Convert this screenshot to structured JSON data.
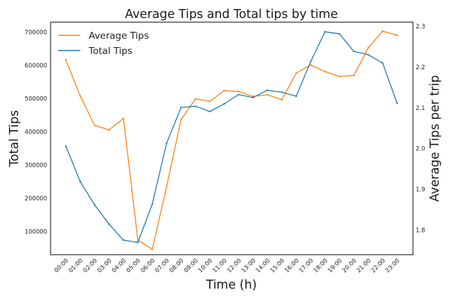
{
  "chart_data": {
    "type": "line",
    "title": "Average Tips and Total tips by time",
    "xlabel": "Time (h)",
    "ylabel_left": "Total Tips",
    "ylabel_right": "Average Tips per trip",
    "x": [
      "00:00",
      "01:00",
      "02:00",
      "03:00",
      "04:00",
      "05:00",
      "06:00",
      "07:00",
      "08:00",
      "09:00",
      "10:00",
      "11:00",
      "12:00",
      "13:00",
      "14:00",
      "15:00",
      "16:00",
      "17:00",
      "18:00",
      "19:00",
      "20:00",
      "21:00",
      "22:00",
      "23:00"
    ],
    "ylim_left": [
      30000,
      730000
    ],
    "ylim_right": [
      1.74,
      2.31
    ],
    "yticks_left": [
      100000,
      200000,
      300000,
      400000,
      500000,
      600000,
      700000
    ],
    "yticks_right": [
      1.8,
      1.9,
      2.0,
      2.1,
      2.2,
      2.3
    ],
    "grid": false,
    "legend_position": "top-left",
    "series": [
      {
        "name": "Average Tips",
        "axis": "right",
        "color": "#ff7f0e",
        "values": [
          2.218,
          2.129,
          2.057,
          2.046,
          2.074,
          1.776,
          1.753,
          1.907,
          2.071,
          2.122,
          2.116,
          2.142,
          2.14,
          2.128,
          2.132,
          2.12,
          2.185,
          2.205,
          2.189,
          2.177,
          2.179,
          2.247,
          2.288,
          2.278
        ]
      },
      {
        "name": "Total Tips",
        "axis": "left",
        "color": "#1f77b4",
        "values": [
          357000,
          250000,
          180000,
          122000,
          74000,
          67000,
          182000,
          366000,
          473000,
          477000,
          461000,
          484000,
          512000,
          503000,
          525000,
          519000,
          507000,
          611000,
          701000,
          695000,
          642000,
          632000,
          607000,
          486000
        ]
      }
    ]
  }
}
